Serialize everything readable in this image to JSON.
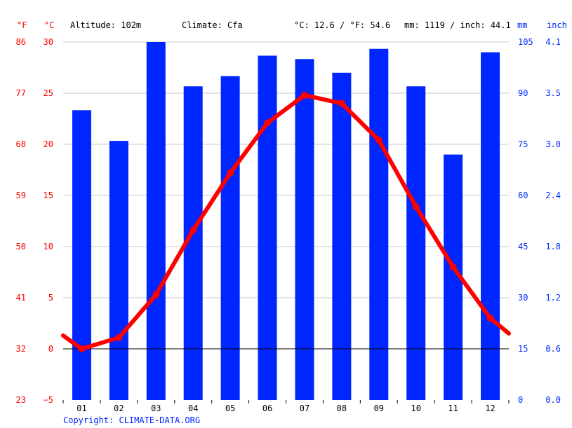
{
  "header": {
    "unit_f": "°F",
    "unit_c": "°C",
    "altitude": "Altitude: 102m",
    "climate": "Climate: Cfa",
    "temperature": "°C: 12.6 / °F: 54.6",
    "precipitation": "mm: 1119 / inch: 44.1",
    "unit_mm": "mm",
    "unit_inch": "inch"
  },
  "footer": {
    "copyright": "Copyright: CLIMATE-DATA.ORG"
  },
  "colors": {
    "temperature": "#ff0000",
    "precipitation": "#0026ff",
    "grid": "#c8c8c8"
  },
  "chart_data": {
    "type": "bar",
    "categories": [
      "01",
      "02",
      "03",
      "04",
      "05",
      "06",
      "07",
      "08",
      "09",
      "10",
      "11",
      "12"
    ],
    "series": [
      {
        "type": "bar",
        "axis": "right",
        "unit": "mm",
        "values": [
          85,
          76,
          105,
          92,
          95,
          101,
          100,
          96,
          103,
          92,
          72,
          102
        ]
      },
      {
        "type": "line",
        "axis": "left",
        "unit": "°C",
        "values": [
          0.0,
          1.1,
          5.3,
          11.6,
          17.2,
          22.1,
          24.8,
          24.0,
          20.4,
          13.9,
          8.0,
          3.0
        ]
      }
    ],
    "line_ends": {
      "start": 1.3,
      "end": 1.5
    },
    "axes": {
      "left_c": {
        "ticks": [
          30,
          25,
          20,
          15,
          10,
          5,
          0,
          -5
        ],
        "range": [
          -5,
          30
        ]
      },
      "left_f": {
        "ticks": [
          "86",
          "77",
          "68",
          "59",
          "50",
          "41",
          "32",
          "23"
        ]
      },
      "right_mm": {
        "ticks": [
          "105",
          "90",
          "75",
          "60",
          "45",
          "30",
          "15",
          "0"
        ],
        "range": [
          0,
          105
        ]
      },
      "right_inch": {
        "ticks": [
          "4.1",
          "3.5",
          "3.0",
          "2.4",
          "1.8",
          "1.2",
          "0.6",
          "0.0"
        ]
      }
    },
    "grid": true
  }
}
